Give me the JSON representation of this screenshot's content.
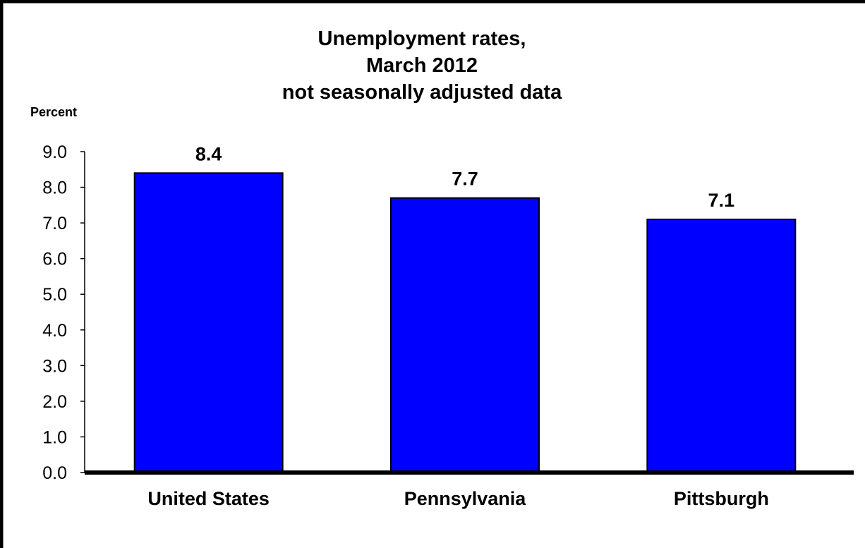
{
  "chart_data": {
    "type": "bar",
    "title_lines": [
      "Unemployment rates,",
      "March 2012",
      "not seasonally adjusted data"
    ],
    "ylabel": "Percent",
    "xlabel": "",
    "categories": [
      "United States",
      "Pennsylvania",
      "Pittsburgh"
    ],
    "values": [
      8.4,
      7.7,
      7.1
    ],
    "value_labels": [
      "8.4",
      "7.7",
      "7.1"
    ],
    "ylim": [
      0,
      9
    ],
    "yticks": [
      0,
      1,
      2,
      3,
      4,
      5,
      6,
      7,
      8,
      9
    ],
    "ytick_labels": [
      "0.0",
      "1.0",
      "2.0",
      "3.0",
      "4.0",
      "5.0",
      "6.0",
      "7.0",
      "8.0",
      "9.0"
    ],
    "grid": false,
    "legend": "none",
    "colors": {
      "bar_fill": "#0000FF",
      "bar_stroke": "#000000",
      "axis": "#000000",
      "frame": "#000000"
    }
  }
}
